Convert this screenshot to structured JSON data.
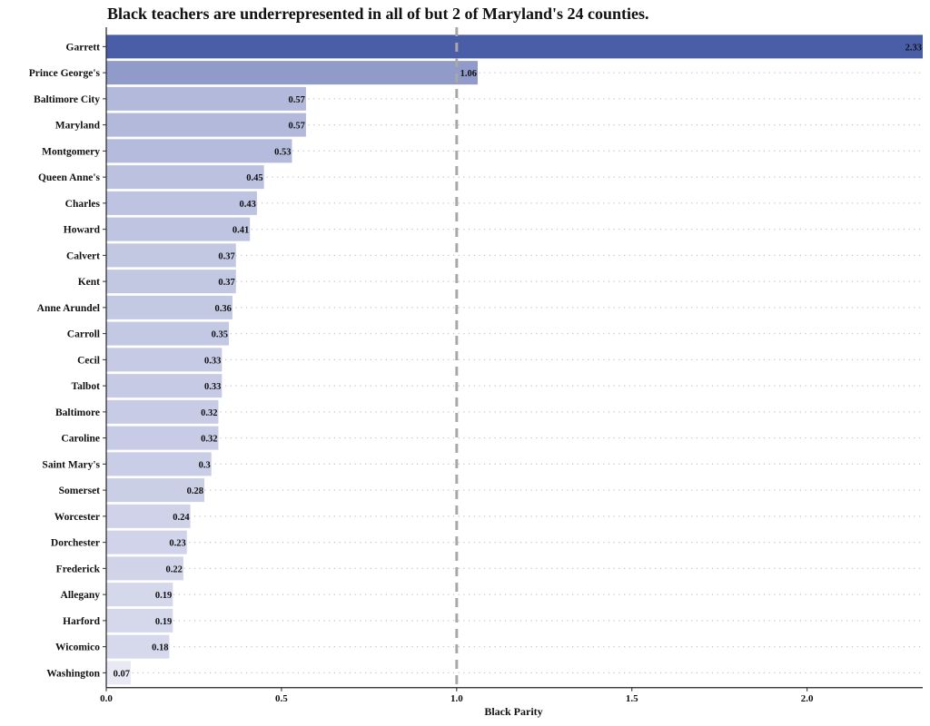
{
  "chart_data": {
    "type": "bar",
    "orientation": "horizontal",
    "title": "Black teachers are underrepresented in all of but 2 of Maryland's 24 counties.",
    "xlabel": "Black Parity",
    "ylabel": "",
    "xlim": [
      0,
      2.33
    ],
    "xticks": [
      "0.0",
      "0.5",
      "1.0",
      "1.5",
      "2.0"
    ],
    "reference_line": 1.0,
    "grid": "dotted horizontal per bar",
    "color_low": "#e9e9f5",
    "color_high": "#4a5ea8",
    "categories": [
      "Garrett",
      "Prince George's",
      "Baltimore City",
      "Maryland",
      "Montgomery",
      "Queen Anne's",
      "Charles",
      "Howard",
      "Calvert",
      "Kent",
      "Anne Arundel",
      "Carroll",
      "Cecil",
      "Talbot",
      "Baltimore",
      "Caroline",
      "Saint Mary's",
      "Somerset",
      "Worcester",
      "Dorchester",
      "Frederick",
      "Allegany",
      "Harford",
      "Wicomico",
      "Washington"
    ],
    "values": [
      2.33,
      1.06,
      0.57,
      0.57,
      0.53,
      0.45,
      0.43,
      0.41,
      0.37,
      0.37,
      0.36,
      0.35,
      0.33,
      0.33,
      0.32,
      0.32,
      0.3,
      0.28,
      0.24,
      0.23,
      0.22,
      0.19,
      0.19,
      0.18,
      0.07
    ],
    "value_labels": [
      "2.33",
      "1.06",
      "0.57",
      "0.57",
      "0.53",
      "0.45",
      "0.43",
      "0.41",
      "0.37",
      "0.37",
      "0.36",
      "0.35",
      "0.33",
      "0.33",
      "0.32",
      "0.32",
      "0.3",
      "0.28",
      "0.24",
      "0.23",
      "0.22",
      "0.19",
      "0.19",
      "0.18",
      "0.07"
    ]
  }
}
